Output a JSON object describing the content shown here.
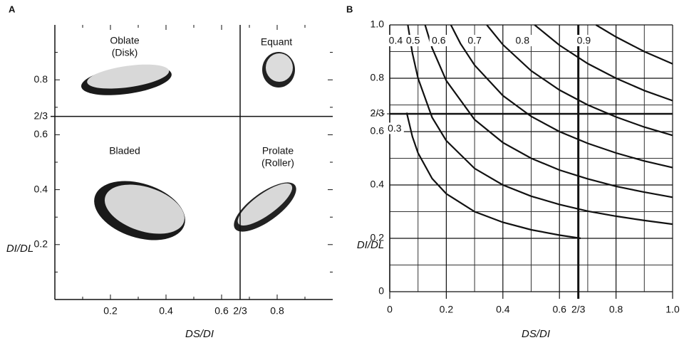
{
  "chart_data": [
    {
      "type": "zingg",
      "panel": "A",
      "xlim": [
        0,
        1
      ],
      "ylim": [
        0,
        1
      ],
      "xticks": [
        0.2,
        0.4,
        0.6,
        {
          "value": 0.6667,
          "label": "2/3"
        },
        0.8
      ],
      "yticks": [
        0.2,
        0.4,
        0.6,
        {
          "value": 0.6667,
          "label": "2/3"
        },
        0.8
      ],
      "xminor": [
        0.1,
        0.3,
        0.5,
        0.7,
        0.9
      ],
      "yminor": [
        0.1,
        0.3,
        0.5,
        0.7,
        0.9
      ],
      "xlabel": "DS/DI",
      "ylabel": "DI/DL",
      "regions": [
        [
          "Oblate",
          "(Disk)"
        ],
        [
          "Equant"
        ],
        [
          "Bladed"
        ],
        [
          "Prolate",
          "(Roller)"
        ]
      ]
    },
    {
      "type": "line",
      "panel": "B",
      "xlim": [
        0,
        1
      ],
      "ylim": [
        0,
        1
      ],
      "xticks": [
        0,
        0.2,
        0.4,
        0.6,
        {
          "value": 0.6667,
          "label": "2/3"
        },
        0.8,
        {
          "value": 1,
          "label": "1.0"
        }
      ],
      "yticks": [
        0,
        0.2,
        0.4,
        0.6,
        {
          "value": 0.6667,
          "label": "2/3"
        },
        0.8,
        {
          "value": 1,
          "label": "1.0"
        }
      ],
      "xgrid": [
        0.1,
        0.3,
        0.5,
        0.7,
        0.9
      ],
      "ygrid": [
        0.1,
        0.3,
        0.5,
        0.7,
        0.9
      ],
      "xlabel": "DS/DI",
      "ylabel": "DI/DL",
      "series": [
        {
          "name": "0.3",
          "color": "#111111",
          "x": [
            0.06,
            0.08,
            0.1,
            0.15,
            0.2,
            0.3,
            0.4,
            0.5,
            0.6,
            0.675
          ],
          "values": [
            0.671,
            0.581,
            0.52,
            0.424,
            0.367,
            0.3,
            0.26,
            0.232,
            0.212,
            0.2
          ]
        },
        {
          "name": "0.4",
          "color": "#111111",
          "x": [
            0.064,
            0.08,
            0.1,
            0.15,
            0.2,
            0.3,
            0.4,
            0.5,
            0.6,
            0.7,
            0.8,
            0.9,
            1.0
          ],
          "values": [
            1.0,
            0.894,
            0.8,
            0.653,
            0.566,
            0.462,
            0.4,
            0.358,
            0.327,
            0.302,
            0.283,
            0.267,
            0.253
          ]
        },
        {
          "name": "0.5",
          "color": "#111111",
          "x": [
            0.125,
            0.15,
            0.2,
            0.3,
            0.4,
            0.5,
            0.6,
            0.7,
            0.8,
            0.9,
            1.0
          ],
          "values": [
            1.0,
            0.913,
            0.791,
            0.645,
            0.559,
            0.5,
            0.456,
            0.423,
            0.395,
            0.373,
            0.354
          ]
        },
        {
          "name": "0.6",
          "color": "#111111",
          "x": [
            0.216,
            0.25,
            0.3,
            0.4,
            0.5,
            0.6,
            0.7,
            0.8,
            0.9,
            1.0
          ],
          "values": [
            1.0,
            0.93,
            0.849,
            0.735,
            0.657,
            0.6,
            0.556,
            0.52,
            0.49,
            0.465
          ]
        },
        {
          "name": "0.7",
          "color": "#111111",
          "x": [
            0.343,
            0.4,
            0.5,
            0.6,
            0.7,
            0.8,
            0.9,
            1.0
          ],
          "values": [
            1.0,
            0.926,
            0.828,
            0.756,
            0.7,
            0.655,
            0.617,
            0.586
          ]
        },
        {
          "name": "0.8",
          "color": "#111111",
          "x": [
            0.512,
            0.6,
            0.7,
            0.8,
            0.9,
            1.0
          ],
          "values": [
            1.0,
            0.924,
            0.855,
            0.8,
            0.754,
            0.716
          ]
        },
        {
          "name": "0.9",
          "color": "#111111",
          "x": [
            0.729,
            0.8,
            0.9,
            1.0
          ],
          "values": [
            1.0,
            0.955,
            0.9,
            0.854
          ]
        }
      ]
    }
  ]
}
